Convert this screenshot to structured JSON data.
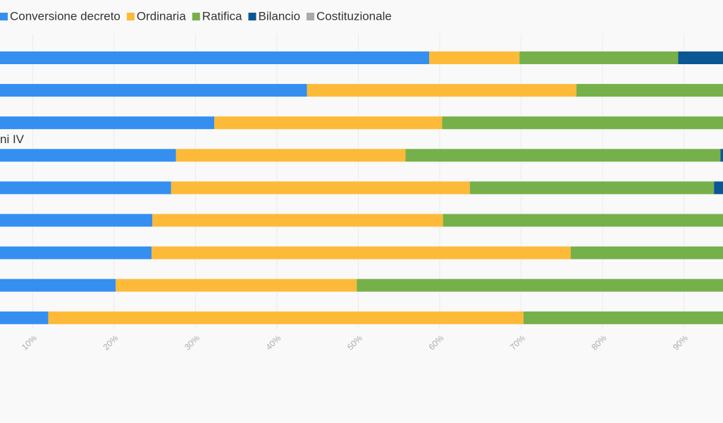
{
  "chart_data": {
    "type": "stacked-bar-horizontal",
    "categories": [
      null,
      null,
      null,
      "ni IV",
      null,
      null,
      null,
      null,
      null
    ],
    "series": [
      {
        "name": "Conversione decreto",
        "color": "#348ff0",
        "values": [
          58.7,
          43.7,
          32.3,
          27.6,
          27.0,
          24.7,
          24.6,
          20.2,
          11.9
        ]
      },
      {
        "name": "Ordinaria",
        "color": "#fdba38",
        "values": [
          11.1,
          33.1,
          28.0,
          28.2,
          36.7,
          35.7,
          51.5,
          29.6,
          58.4
        ]
      },
      {
        "name": "Ratifica",
        "color": "#76b04a",
        "values": [
          19.5,
          23.2,
          39.7,
          38.7,
          30.0,
          39.6,
          23.9,
          50.2,
          29.7
        ]
      },
      {
        "name": "Bilancio",
        "color": "#0b5794",
        "values": [
          10.7,
          0,
          0,
          5.5,
          6.3,
          0,
          0,
          0,
          0
        ]
      },
      {
        "name": "Costituzionale",
        "color": "#aaaaaa",
        "values": [
          0,
          0,
          0,
          0,
          0,
          0,
          0,
          0,
          0
        ]
      }
    ],
    "xlim": [
      0,
      100
    ],
    "xticks": [
      {
        "value": 10,
        "label": "10%"
      },
      {
        "value": 20,
        "label": "20%"
      },
      {
        "value": 30,
        "label": "30%"
      },
      {
        "value": 40,
        "label": "40%"
      },
      {
        "value": 50,
        "label": "50%"
      },
      {
        "value": 60,
        "label": "60%"
      },
      {
        "value": 70,
        "label": "70%"
      },
      {
        "value": 80,
        "label": "80%"
      },
      {
        "value": 90,
        "label": "90%"
      }
    ],
    "grid": true
  }
}
